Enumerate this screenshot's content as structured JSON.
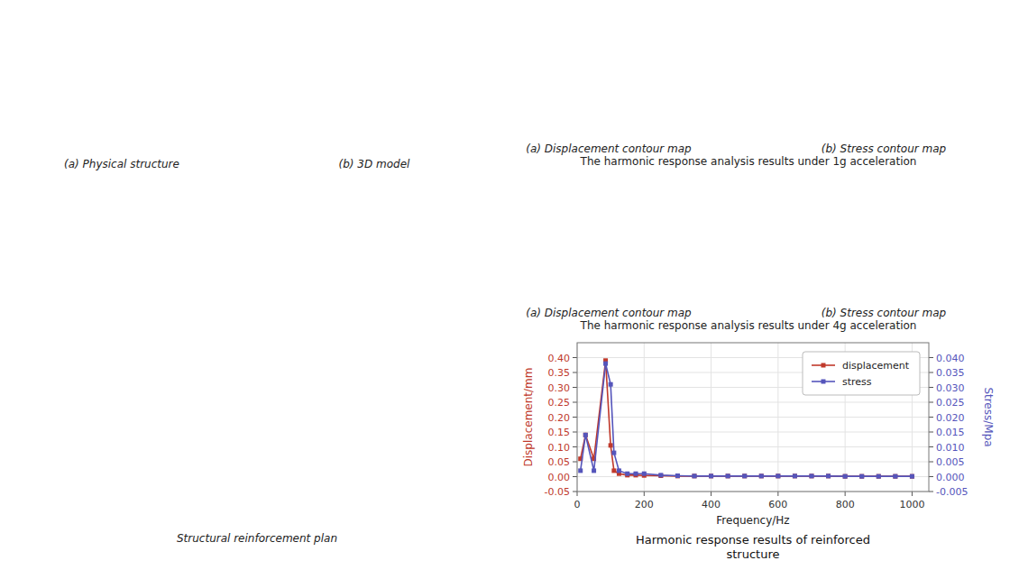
{
  "chart_data": {
    "type": "line",
    "title": "Harmonic response results of reinforced\nstructure",
    "x_label": "Frequency/Hz",
    "y_label": "Displacement/mm",
    "y2_label": "Stress/Mpa",
    "x": [
      10,
      25,
      50,
      85,
      100,
      110,
      125,
      150,
      175,
      200,
      250,
      300,
      350,
      400,
      450,
      500,
      550,
      600,
      650,
      700,
      750,
      800,
      850,
      900,
      950,
      1000
    ],
    "series": [
      {
        "name": "displacement",
        "color": "#c0392b",
        "marker": "square",
        "values": [
          0.06,
          0.14,
          0.06,
          0.39,
          0.105,
          0.02,
          0.01,
          0.005,
          0.005,
          0.004,
          0.003,
          0.002,
          0.002,
          0.002,
          0.002,
          0.002,
          0.002,
          0.002,
          0.002,
          0.002,
          0.002,
          0.001,
          0.001,
          0.001,
          0.001,
          0.001
        ]
      },
      {
        "name": "stress",
        "color": "#5555bb",
        "marker": "square",
        "axis": "y2",
        "values": [
          0.002,
          0.014,
          0.002,
          0.038,
          0.031,
          0.008,
          0.002,
          0.001,
          0.001,
          0.001,
          0.0005,
          0.0003,
          0.0002,
          0.0002,
          0.0002,
          0.0002,
          0.0002,
          0.0002,
          0.0002,
          0.0002,
          0.0002,
          0.0001,
          0.0001,
          0.0001,
          0.0001,
          0.0001
        ]
      }
    ],
    "xlim": [
      0,
      1050
    ],
    "xticks": [
      0,
      200,
      400,
      600,
      800,
      1000
    ],
    "ylim": [
      -0.05,
      0.45
    ],
    "yticks": [
      -0.05,
      {
        "value": 0,
        "label": "0.00"
      },
      0.05,
      {
        "value": 0.1,
        "label": "0.10"
      },
      0.15,
      {
        "value": 0.2,
        "label": "0.20"
      },
      0.25,
      {
        "value": 0.3,
        "label": "0.30"
      },
      0.35,
      {
        "value": 0.4,
        "label": "0.40"
      }
    ],
    "y2lim": [
      -0.005,
      0.045
    ],
    "y2ticks": [
      -0.005,
      {
        "value": 0,
        "label": "0.000"
      },
      0.005,
      {
        "value": 0.01,
        "label": "0.010"
      },
      0.015,
      {
        "value": 0.02,
        "label": "0.020"
      },
      0.025,
      {
        "value": 0.03,
        "label": "0.030"
      },
      0.035,
      {
        "value": 0.04,
        "label": "0.040"
      }
    ],
    "grid": true,
    "legend": "upper right",
    "annotations": [
      "(a) Physical structure",
      "(b) 3D model",
      "Structural reinforcement plan",
      "(a) Displacement contour map",
      "(b) Stress contour map",
      "The harmonic response analysis results under 1g acceleration",
      "(a) Displacement contour map",
      "(b) Stress contour map",
      "The harmonic response analysis results under 4g acceleration"
    ]
  }
}
